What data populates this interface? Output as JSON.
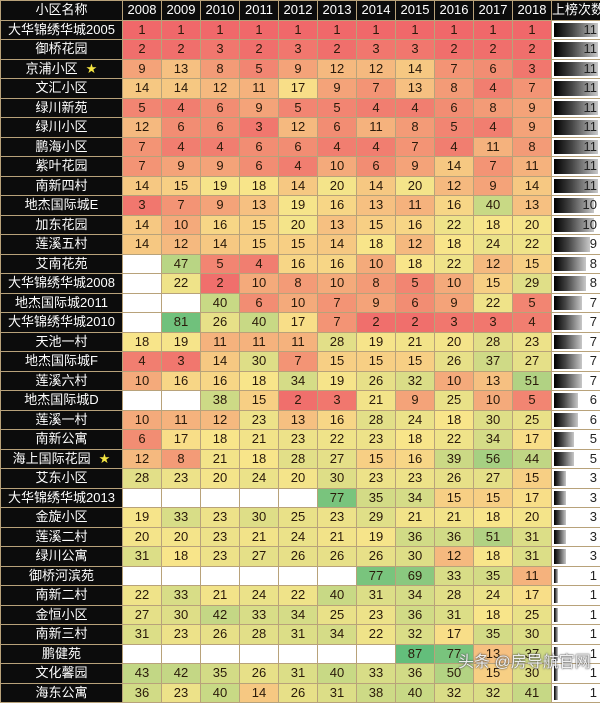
{
  "header": {
    "name_label": "小区名称",
    "years": [
      "2008",
      "2009",
      "2010",
      "2011",
      "2012",
      "2013",
      "2014",
      "2015",
      "2016",
      "2017",
      "2018"
    ],
    "count_label": "上榜次数"
  },
  "watermark": "头条 @房导航官网",
  "colors": {
    "rank_best": "#f0686a",
    "rank_mid": "#f8e58a",
    "rank_worst": "#63be7b",
    "header_bg": "#0c0c0c",
    "empty": "#ffffff"
  },
  "chart_data": {
    "type": "heatmap",
    "title": "",
    "xlabel": "",
    "ylabel": "小区名称",
    "columns": [
      "2008",
      "2009",
      "2010",
      "2011",
      "2012",
      "2013",
      "2014",
      "2015",
      "2016",
      "2017",
      "2018"
    ],
    "count_column": "上榜次数",
    "rows": [
      {
        "name": "大华锦绣华城2005",
        "star": false,
        "values": [
          1,
          1,
          1,
          1,
          1,
          1,
          1,
          1,
          1,
          1,
          1
        ],
        "count": 11
      },
      {
        "name": "御桥花园",
        "star": false,
        "values": [
          2,
          2,
          3,
          2,
          3,
          2,
          3,
          3,
          2,
          2,
          2
        ],
        "count": 11
      },
      {
        "name": "京浦小区",
        "star": true,
        "values": [
          9,
          13,
          8,
          5,
          9,
          12,
          12,
          14,
          7,
          6,
          3
        ],
        "count": 11
      },
      {
        "name": "文汇小区",
        "star": false,
        "values": [
          14,
          14,
          12,
          11,
          17,
          9,
          7,
          13,
          8,
          4,
          7
        ],
        "count": 11
      },
      {
        "name": "绿川新苑",
        "star": false,
        "values": [
          5,
          4,
          6,
          9,
          5,
          5,
          4,
          4,
          6,
          8,
          9
        ],
        "count": 11
      },
      {
        "name": "绿川小区",
        "star": false,
        "values": [
          12,
          6,
          6,
          3,
          12,
          6,
          11,
          8,
          5,
          4,
          9
        ],
        "count": 11
      },
      {
        "name": "鹏海小区",
        "star": false,
        "values": [
          7,
          4,
          4,
          6,
          6,
          4,
          4,
          7,
          4,
          11,
          8
        ],
        "count": 11
      },
      {
        "name": "紫叶花园",
        "star": false,
        "values": [
          7,
          9,
          9,
          6,
          4,
          10,
          6,
          9,
          14,
          7,
          11
        ],
        "count": 11
      },
      {
        "name": "南新四村",
        "star": false,
        "values": [
          14,
          15,
          19,
          18,
          14,
          20,
          14,
          20,
          12,
          9,
          14
        ],
        "count": 11
      },
      {
        "name": "地杰国际城E",
        "star": false,
        "values": [
          3,
          7,
          9,
          13,
          19,
          16,
          13,
          11,
          16,
          40,
          13
        ],
        "count": 10
      },
      {
        "name": "加东花园",
        "star": false,
        "values": [
          14,
          10,
          16,
          15,
          20,
          13,
          15,
          16,
          22,
          18,
          20
        ],
        "count": 10
      },
      {
        "name": "莲溪五村",
        "star": false,
        "values": [
          14,
          12,
          14,
          15,
          15,
          14,
          18,
          12,
          18,
          24,
          22
        ],
        "count": 9
      },
      {
        "name": "艾南花苑",
        "star": false,
        "values": [
          null,
          47,
          5,
          4,
          16,
          16,
          10,
          18,
          22,
          12,
          15
        ],
        "count": 8
      },
      {
        "name": "大华锦绣华城2008",
        "star": false,
        "values": [
          null,
          22,
          2,
          10,
          8,
          10,
          8,
          5,
          10,
          15,
          29
        ],
        "count": 8
      },
      {
        "name": "地杰国际城2011",
        "star": false,
        "values": [
          null,
          null,
          40,
          6,
          10,
          7,
          9,
          6,
          9,
          22,
          5
        ],
        "count": 7
      },
      {
        "name": "大华锦绣华城2010",
        "star": false,
        "values": [
          null,
          81,
          26,
          40,
          17,
          7,
          2,
          2,
          3,
          3,
          4
        ],
        "count": 7
      },
      {
        "name": "天池一村",
        "star": false,
        "values": [
          18,
          19,
          11,
          11,
          11,
          28,
          19,
          21,
          20,
          28,
          23
        ],
        "count": 7
      },
      {
        "name": "地杰国际城F",
        "star": false,
        "values": [
          4,
          3,
          14,
          30,
          7,
          15,
          15,
          15,
          26,
          37,
          27
        ],
        "count": 7
      },
      {
        "name": "莲溪六村",
        "star": false,
        "values": [
          10,
          16,
          16,
          18,
          34,
          19,
          26,
          32,
          10,
          13,
          51
        ],
        "count": 7
      },
      {
        "name": "地杰国际城D",
        "star": false,
        "values": [
          null,
          null,
          38,
          15,
          2,
          3,
          21,
          9,
          25,
          10,
          5
        ],
        "count": 6
      },
      {
        "name": "莲溪一村",
        "star": false,
        "values": [
          10,
          11,
          12,
          23,
          13,
          16,
          28,
          24,
          18,
          30,
          25
        ],
        "count": 6
      },
      {
        "name": "南新公寓",
        "star": false,
        "values": [
          6,
          17,
          18,
          21,
          23,
          22,
          23,
          18,
          22,
          34,
          17
        ],
        "count": 5
      },
      {
        "name": "海上国际花园",
        "star": true,
        "values": [
          12,
          8,
          21,
          18,
          28,
          27,
          15,
          16,
          39,
          56,
          44
        ],
        "count": 5
      },
      {
        "name": "艾东小区",
        "star": false,
        "values": [
          28,
          23,
          20,
          24,
          20,
          30,
          23,
          23,
          26,
          27,
          15
        ],
        "count": 3
      },
      {
        "name": "大华锦绣华城2013",
        "star": false,
        "values": [
          null,
          null,
          null,
          null,
          null,
          77,
          35,
          34,
          15,
          15,
          17
        ],
        "count": 3
      },
      {
        "name": "金旋小区",
        "star": false,
        "values": [
          19,
          33,
          23,
          30,
          25,
          23,
          29,
          21,
          21,
          18,
          20
        ],
        "count": 3
      },
      {
        "name": "莲溪二村",
        "star": false,
        "values": [
          20,
          20,
          23,
          21,
          24,
          21,
          19,
          36,
          36,
          51,
          31
        ],
        "count": 3
      },
      {
        "name": "绿川公寓",
        "star": false,
        "values": [
          31,
          18,
          23,
          27,
          26,
          26,
          26,
          30,
          12,
          18,
          31
        ],
        "count": 3
      },
      {
        "name": "御桥河滨苑",
        "star": false,
        "values": [
          null,
          null,
          null,
          null,
          null,
          null,
          77,
          69,
          33,
          35,
          11
        ],
        "count": 1
      },
      {
        "name": "南新二村",
        "star": false,
        "values": [
          22,
          33,
          21,
          24,
          22,
          40,
          31,
          34,
          28,
          24,
          17
        ],
        "count": 1
      },
      {
        "name": "金恒小区",
        "star": false,
        "values": [
          27,
          30,
          42,
          33,
          34,
          25,
          23,
          36,
          31,
          18,
          25
        ],
        "count": 1
      },
      {
        "name": "南新三村",
        "star": false,
        "values": [
          31,
          23,
          26,
          28,
          31,
          34,
          22,
          32,
          17,
          35,
          30
        ],
        "count": 1
      },
      {
        "name": "鹏健苑",
        "star": false,
        "values": [
          null,
          null,
          null,
          null,
          null,
          null,
          null,
          87,
          77,
          13,
          37
        ],
        "count": 1
      },
      {
        "name": "文化馨园",
        "star": false,
        "values": [
          43,
          42,
          35,
          26,
          31,
          40,
          33,
          36,
          50,
          15,
          30
        ],
        "count": 1
      },
      {
        "name": "海东公寓",
        "star": false,
        "values": [
          36,
          23,
          40,
          14,
          26,
          31,
          38,
          40,
          32,
          32,
          41
        ],
        "count": 1
      }
    ],
    "color_scale": {
      "low": "#f0686a",
      "mid": "#f8e58a",
      "high": "#63be7b",
      "low_value": 1,
      "mid_value": 18,
      "high_value": 87
    },
    "count_max": 11,
    "legend": "none",
    "grid": true
  }
}
